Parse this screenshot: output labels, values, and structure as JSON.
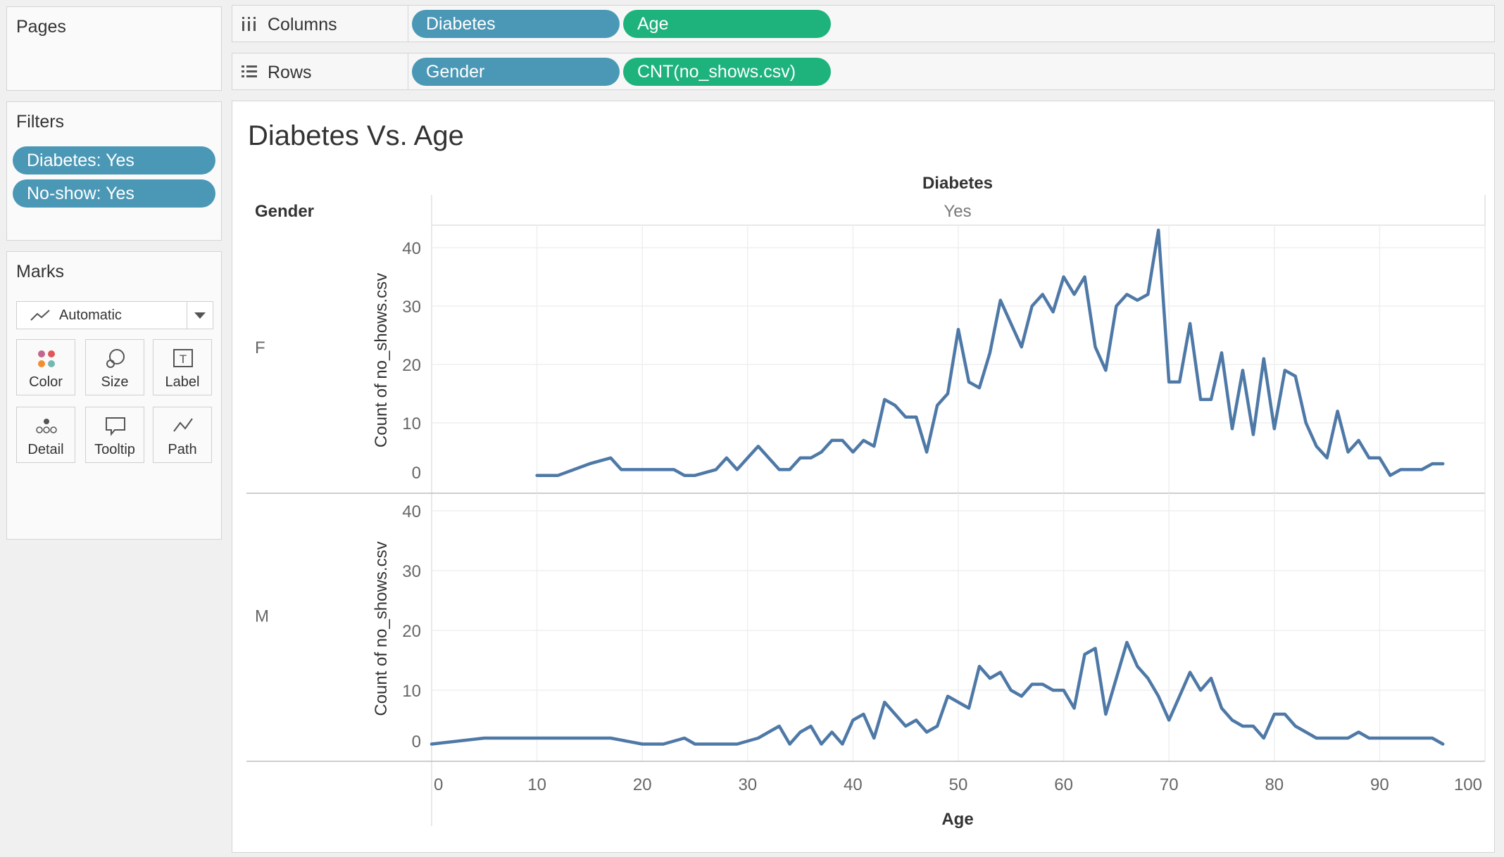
{
  "pages_card": {
    "title": "Pages"
  },
  "filters_card": {
    "title": "Filters",
    "pills": [
      "Diabetes: Yes",
      "No-show: Yes"
    ]
  },
  "marks_card": {
    "title": "Marks",
    "mark_type": "Automatic",
    "buttons": [
      "Color",
      "Size",
      "Label",
      "Detail",
      "Tooltip",
      "Path"
    ]
  },
  "shelves": {
    "columns": {
      "label": "Columns",
      "pills": [
        "Diabetes",
        "Age"
      ]
    },
    "rows": {
      "label": "Rows",
      "pills": [
        "Gender",
        "CNT(no_shows.csv)"
      ]
    }
  },
  "colors": {
    "dimension_pill": "#4b98b6",
    "measure_pill": "#1eb37c",
    "line": "#4e79a7"
  },
  "chart_data": {
    "type": "line",
    "title": "Diabetes Vs. Age",
    "column_header": "Diabetes",
    "column_value": "Yes",
    "row_header": "Gender",
    "xlabel": "Age",
    "ylabel": "Count of no_shows.csv",
    "xlim": [
      0,
      100
    ],
    "ylim": [
      0,
      45
    ],
    "x_ticks": [
      "0",
      "10",
      "20",
      "30",
      "40",
      "50",
      "60",
      "70",
      "80",
      "90",
      "100"
    ],
    "y_ticks": [
      "0",
      "10",
      "20",
      "30",
      "40"
    ],
    "grid": true,
    "series": [
      {
        "name": "F",
        "x": [
          10,
          12,
          15,
          17,
          18,
          20,
          22,
          23,
          24,
          25,
          27,
          28,
          29,
          30,
          31,
          32,
          33,
          34,
          35,
          36,
          37,
          38,
          39,
          40,
          41,
          42,
          43,
          44,
          45,
          46,
          47,
          48,
          49,
          50,
          51,
          52,
          53,
          54,
          55,
          56,
          57,
          58,
          59,
          60,
          61,
          62,
          63,
          64,
          65,
          66,
          67,
          68,
          69,
          70,
          71,
          72,
          73,
          74,
          75,
          76,
          77,
          78,
          79,
          80,
          81,
          82,
          83,
          84,
          85,
          86,
          87,
          88,
          89,
          90,
          91,
          92,
          93,
          94,
          95,
          96
        ],
        "values": [
          1,
          1,
          3,
          4,
          2,
          2,
          2,
          2,
          1,
          1,
          2,
          4,
          2,
          4,
          6,
          4,
          2,
          2,
          4,
          4,
          5,
          7,
          7,
          5,
          7,
          6,
          14,
          13,
          11,
          11,
          5,
          13,
          15,
          26,
          17,
          16,
          22,
          31,
          27,
          23,
          30,
          32,
          29,
          35,
          32,
          35,
          23,
          19,
          30,
          32,
          31,
          32,
          43,
          17,
          17,
          27,
          14,
          14,
          22,
          9,
          19,
          8,
          21,
          9,
          19,
          18,
          10,
          6,
          4,
          12,
          5,
          7,
          4,
          4,
          1,
          2,
          2,
          2,
          3,
          3
        ]
      },
      {
        "name": "M",
        "x": [
          0,
          5,
          10,
          15,
          17,
          20,
          22,
          24,
          25,
          27,
          29,
          31,
          32,
          33,
          34,
          35,
          36,
          37,
          38,
          39,
          40,
          41,
          42,
          43,
          44,
          45,
          46,
          47,
          48,
          49,
          50,
          51,
          52,
          53,
          54,
          55,
          56,
          57,
          58,
          59,
          60,
          61,
          62,
          63,
          64,
          65,
          66,
          67,
          68,
          69,
          70,
          71,
          72,
          73,
          74,
          75,
          76,
          77,
          78,
          79,
          80,
          81,
          82,
          83,
          84,
          85,
          86,
          87,
          88,
          89,
          90,
          91,
          92,
          93,
          94,
          95,
          96
        ],
        "values": [
          1,
          2,
          2,
          2,
          2,
          1,
          1,
          2,
          1,
          1,
          1,
          2,
          3,
          4,
          1,
          3,
          4,
          1,
          3,
          1,
          5,
          6,
          2,
          8,
          6,
          4,
          5,
          3,
          4,
          9,
          8,
          7,
          14,
          12,
          13,
          10,
          9,
          11,
          11,
          10,
          10,
          7,
          16,
          17,
          6,
          12,
          18,
          14,
          12,
          9,
          5,
          9,
          13,
          10,
          12,
          7,
          5,
          4,
          4,
          2,
          6,
          6,
          4,
          3,
          2,
          2,
          2,
          2,
          3,
          2,
          2,
          2,
          2,
          2,
          2,
          2,
          1
        ]
      }
    ]
  }
}
